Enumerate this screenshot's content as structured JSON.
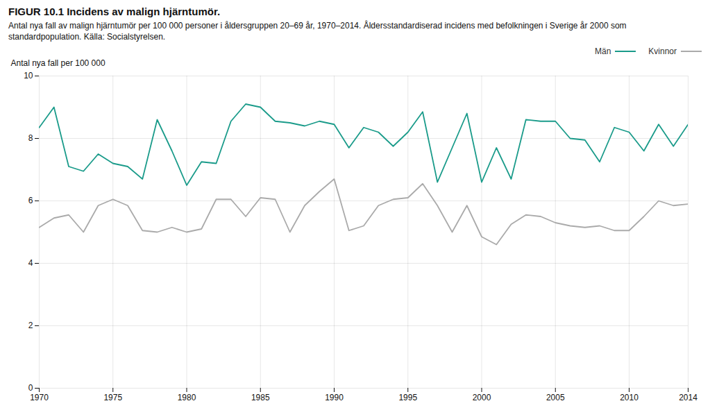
{
  "chart_data": {
    "type": "line",
    "title": "FIGUR 10.1 Incidens av malign hjärntumör.",
    "subtitle": "Antal nya fall av malign hjärntumör per 100 000 personer i åldersgruppen 20–69 år, 1970–2014. Åldersstandardiserad incidens med befolkningen i Sverige år 2000 som standardpopulation. Källa: Socialstyrelsen.",
    "y_label": "Antal nya fall per 100 000",
    "x": [
      1970,
      1971,
      1972,
      1973,
      1974,
      1975,
      1976,
      1977,
      1978,
      1979,
      1980,
      1981,
      1982,
      1983,
      1984,
      1985,
      1986,
      1987,
      1988,
      1989,
      1990,
      1991,
      1992,
      1993,
      1994,
      1995,
      1996,
      1997,
      1998,
      1999,
      2000,
      2001,
      2002,
      2003,
      2004,
      2005,
      2006,
      2007,
      2008,
      2009,
      2010,
      2011,
      2012,
      2013,
      2014
    ],
    "series": [
      {
        "name": "Män",
        "color": "#1a9b8a",
        "values": [
          8.35,
          9.0,
          7.1,
          6.95,
          7.5,
          7.2,
          7.1,
          6.7,
          8.6,
          7.6,
          6.5,
          7.25,
          7.2,
          8.55,
          9.1,
          9.0,
          8.55,
          8.5,
          8.4,
          8.55,
          8.45,
          7.7,
          8.35,
          8.2,
          7.75,
          8.2,
          8.85,
          6.6,
          7.7,
          8.8,
          6.6,
          7.7,
          6.7,
          8.6,
          8.55,
          8.55,
          8.0,
          7.95,
          7.25,
          8.35,
          8.2,
          7.6,
          8.45,
          7.75,
          8.45
        ]
      },
      {
        "name": "Kvinnor",
        "color": "#aaaaaa",
        "values": [
          5.15,
          5.45,
          5.55,
          5.0,
          5.85,
          6.05,
          5.85,
          5.05,
          5.0,
          5.15,
          5.0,
          5.1,
          6.05,
          6.05,
          5.5,
          6.1,
          6.05,
          5.0,
          5.85,
          6.3,
          6.7,
          5.05,
          5.2,
          5.85,
          6.05,
          6.1,
          6.55,
          5.85,
          5.0,
          5.85,
          4.85,
          4.6,
          5.25,
          5.55,
          5.5,
          5.3,
          5.2,
          5.15,
          5.2,
          5.05,
          5.05,
          5.5,
          6.0,
          5.85,
          5.9
        ]
      }
    ],
    "xlim": [
      1970,
      2014
    ],
    "xticks": [
      1970,
      1975,
      1980,
      1985,
      1990,
      1995,
      2000,
      2005,
      2010,
      2014
    ],
    "ylim": [
      0,
      10
    ],
    "yticks": [
      0,
      2,
      4,
      6,
      8,
      10
    ],
    "grid": true,
    "legend": "top-right"
  }
}
